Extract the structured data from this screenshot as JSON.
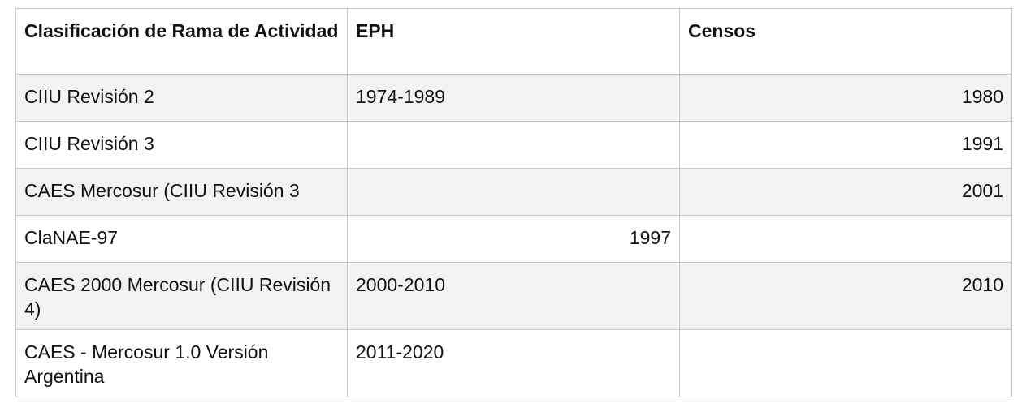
{
  "table": {
    "headers": [
      "Clasificación de Rama de Actividad",
      "EPH",
      "Censos"
    ],
    "rows": [
      {
        "clasificacion": "CIIU Revisión 2",
        "eph": "1974-1989",
        "censos": "1980"
      },
      {
        "clasificacion": "CIIU Revisión 3",
        "eph": "",
        "censos": "1991"
      },
      {
        "clasificacion": "CAES Mercosur (CIIU Revisión 3",
        "eph": "",
        "censos": "2001"
      },
      {
        "clasificacion": "ClaNAE-97",
        "eph": "1997",
        "censos": ""
      },
      {
        "clasificacion": "CAES 2000 Mercosur (CIIU Revisión 4)",
        "eph": "2000-2010",
        "censos": "2010"
      },
      {
        "clasificacion": "CAES - Mercosur 1.0 Versión Argentina",
        "eph": "2011-2020",
        "censos": ""
      }
    ]
  }
}
